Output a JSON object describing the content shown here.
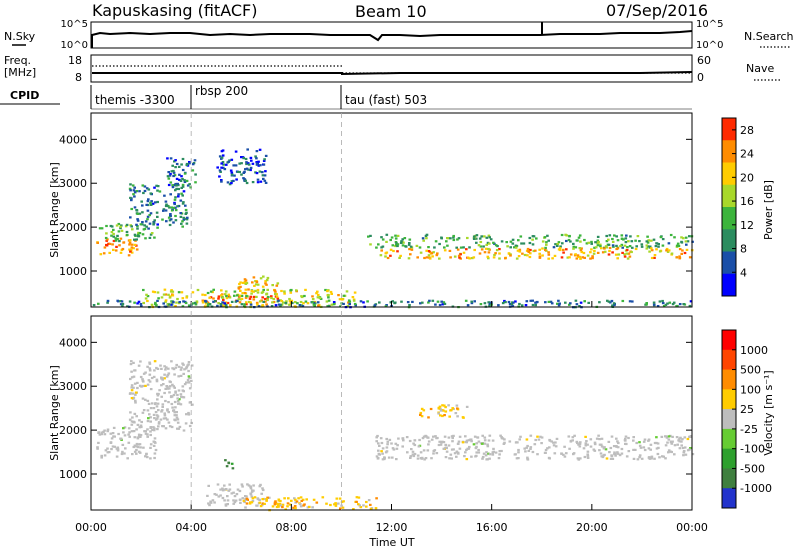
{
  "header": {
    "title": "Kapuskasing (fitACF)",
    "beam": "Beam 10",
    "date": "07/Sep/2016"
  },
  "strip_panels": {
    "nsky": {
      "left_label": "N.Sky",
      "left_ticks": [
        "10^5",
        "10^0"
      ],
      "right_label": "N.Search",
      "right_ticks": [
        "10^5",
        "10^0"
      ]
    },
    "freq": {
      "left_label_line1": "Freq.",
      "left_label_line2": "[MHz]",
      "left_ticks": [
        "18",
        "8"
      ],
      "right_label": "Nave",
      "right_ticks": [
        "60",
        "0"
      ]
    },
    "cpid": {
      "label": "CPID",
      "modes": [
        {
          "name": "themis -3300",
          "start_hour": 0
        },
        {
          "name": "rbsp 200",
          "start_hour": 4
        },
        {
          "name": "tau (fast) 503",
          "start_hour": 10
        }
      ]
    }
  },
  "chart_data": [
    {
      "type": "heatmap",
      "title": "",
      "ylabel": "Slant Range [km]",
      "xlabel": "",
      "xlim": [
        0,
        24
      ],
      "ylim": [
        180,
        4600
      ],
      "y_ticks": [
        1000,
        2000,
        3000,
        4000
      ],
      "colorbar": {
        "label": "Power [dB]",
        "ticks": [
          "4",
          "8",
          "12",
          "16",
          "20",
          "24",
          "28"
        ],
        "tick_values": [
          4,
          8,
          12,
          16,
          20,
          24,
          28
        ],
        "range": [
          0,
          30
        ],
        "colors": [
          "#0000ff",
          "#1a4fa8",
          "#2b8c5f",
          "#3cb43c",
          "#a8d82a",
          "#ffcc00",
          "#ff8c00",
          "#ff2a00"
        ]
      },
      "features": [
        {
          "x": [
            0.2,
            1.8
          ],
          "y": [
            1380,
            1800
          ],
          "value": 24
        },
        {
          "x": [
            0.3,
            2.5
          ],
          "y": [
            1700,
            2100
          ],
          "value": 12
        },
        {
          "x": [
            1.5,
            3.8
          ],
          "y": [
            2000,
            3000
          ],
          "value": 8
        },
        {
          "x": [
            3.0,
            4.2
          ],
          "y": [
            2900,
            3600
          ],
          "value": 8
        },
        {
          "x": [
            5.0,
            7.0
          ],
          "y": [
            3000,
            3800
          ],
          "value": 6
        },
        {
          "x": [
            4.5,
            7.5
          ],
          "y": [
            250,
            450
          ],
          "value": 28
        },
        {
          "x": [
            2.0,
            10.5
          ],
          "y": [
            200,
            600
          ],
          "value": 18
        },
        {
          "x": [
            11.0,
            24.0
          ],
          "y": [
            1550,
            1850
          ],
          "value": 12
        },
        {
          "x": [
            11.5,
            24.0
          ],
          "y": [
            1300,
            1550
          ],
          "value": 22
        },
        {
          "x": [
            5.8,
            7.5
          ],
          "y": [
            500,
            900
          ],
          "value": 20
        },
        {
          "x": [
            0.0,
            24.0
          ],
          "y": [
            200,
            350
          ],
          "value": 8
        }
      ]
    },
    {
      "type": "heatmap",
      "title": "",
      "ylabel": "Slant Range [km]",
      "xlabel": "Time UT",
      "xlim": [
        0,
        24
      ],
      "ylim": [
        180,
        4600
      ],
      "y_ticks": [
        1000,
        2000,
        3000,
        4000
      ],
      "x_ticks": [
        "00:00",
        "04:00",
        "08:00",
        "12:00",
        "16:00",
        "20:00",
        "00:00"
      ],
      "x_tick_values": [
        0,
        4,
        8,
        12,
        16,
        20,
        24
      ],
      "colorbar": {
        "label": "Velocity [m s⁻¹]",
        "ticks": [
          "1000",
          "500",
          "100",
          "25",
          "-25",
          "-100",
          "-500",
          "-1000"
        ],
        "colors": [
          "#2233cc",
          "#3f7f3f",
          "#2ea02e",
          "#66cc33",
          "#bdbdbd",
          "#ffcc00",
          "#ff8c00",
          "#ff4500",
          "#ff0000"
        ]
      },
      "features": [
        {
          "x": [
            0.2,
            2.6
          ],
          "y": [
            1380,
            2100
          ],
          "value": "ground"
        },
        {
          "x": [
            1.5,
            4.0
          ],
          "y": [
            2000,
            3600
          ],
          "value": "ground"
        },
        {
          "x": [
            11.3,
            24.0
          ],
          "y": [
            1350,
            1900
          ],
          "value": "ground"
        },
        {
          "x": [
            4.5,
            7.0
          ],
          "y": [
            300,
            800
          ],
          "value": "ground"
        },
        {
          "x": [
            6.0,
            11.5
          ],
          "y": [
            200,
            500
          ],
          "value": "-100"
        },
        {
          "x": [
            5.3,
            5.7
          ],
          "y": [
            1100,
            1350
          ],
          "value": "100"
        },
        {
          "x": [
            13.0,
            15.0
          ],
          "y": [
            2300,
            2600
          ],
          "value": "-100"
        }
      ]
    }
  ]
}
